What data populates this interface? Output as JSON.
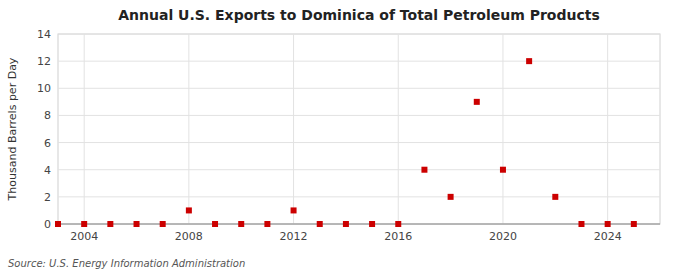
{
  "chart_data": {
    "type": "scatter",
    "title": "Annual U.S. Exports to Dominica of Total Petroleum Products",
    "y_label": "Thousand Barrels per Day",
    "source": "Source: U.S. Energy Information Administration",
    "x": [
      2003,
      2004,
      2005,
      2006,
      2007,
      2008,
      2009,
      2010,
      2011,
      2012,
      2013,
      2014,
      2015,
      2016,
      2017,
      2018,
      2019,
      2020,
      2021,
      2022,
      2023,
      2024,
      2025
    ],
    "values": [
      0,
      0,
      0,
      0,
      0,
      1,
      0,
      0,
      0,
      1,
      0,
      0,
      0,
      0,
      4,
      2,
      9,
      4,
      12,
      2,
      0,
      0,
      0
    ],
    "xlim": [
      2003,
      2026
    ],
    "ylim": [
      0,
      14
    ],
    "xticks": [
      2004,
      2008,
      2012,
      2016,
      2020,
      2024
    ],
    "yticks": [
      0,
      2,
      4,
      6,
      8,
      10,
      12,
      14
    ],
    "color": "#cc0000",
    "marker": "square",
    "grid": true
  }
}
